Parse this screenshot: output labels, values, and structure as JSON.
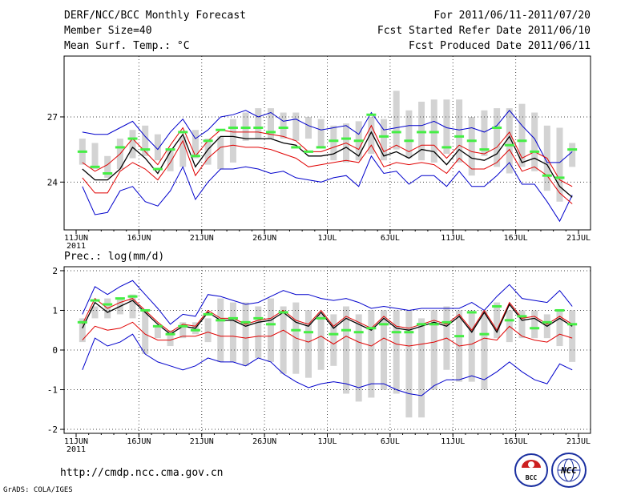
{
  "header": {
    "left": [
      "DERF/NCC/BCC Monthly Forecast",
      "Member Size=40",
      "Mean Surf. Temp.: °C"
    ],
    "right": [
      "For 2011/06/11-2011/07/20",
      "Fcst Started Refer Date 2011/06/10",
      "Fcst Produced Date 2011/06/11"
    ]
  },
  "footer": {
    "url": "http://cmdp.ncc.cma.gov.cn",
    "credit": "GrADS: COLA/IGES",
    "logo_left_text": "BCC",
    "logo_right_text": "NCC"
  },
  "colors": {
    "grey_bar": "#d3d3d3",
    "green": "#44ee44",
    "black_line": "#000000",
    "red_line": "#e00000",
    "blue_line": "#0000cc",
    "grid": "#444444"
  },
  "chart_data": [
    {
      "type": "line",
      "title": "Mean Surf. Temp.: °C",
      "x_ticks": [
        "11JUN",
        "16JUN",
        "21JUN",
        "26JUN",
        "1JUL",
        "6JUL",
        "11JUL",
        "16JUL",
        "21JUL"
      ],
      "x_sublabel": "2011",
      "y_ticks": [
        24,
        27
      ],
      "ylim": [
        21.8,
        29.8
      ],
      "days": 40,
      "bar_low": [
        24.8,
        24.6,
        24.2,
        24.6,
        25.1,
        25.2,
        25.0,
        24.5,
        24.7,
        25.1,
        24.8,
        24.6,
        24.9,
        25.9,
        26.0,
        26.0,
        26.0,
        25.9,
        26.0,
        25.6,
        25.0,
        24.9,
        25.0,
        25.3,
        25.0,
        25.5,
        25.1,
        25.0,
        24.9,
        25.3,
        24.9,
        24.3,
        25.2,
        24.7,
        24.4,
        24.7,
        24.5,
        23.6,
        23.1,
        24.7
      ],
      "bar_high": [
        26.0,
        25.8,
        25.2,
        26.0,
        26.4,
        26.6,
        26.2,
        25.5,
        26.1,
        26.4,
        26.0,
        26.1,
        26.9,
        27.2,
        27.4,
        27.4,
        27.2,
        27.2,
        27.0,
        26.9,
        26.6,
        26.7,
        26.8,
        27.0,
        26.9,
        28.2,
        27.3,
        27.7,
        27.8,
        27.8,
        27.8,
        27.0,
        27.3,
        27.4,
        27.4,
        27.6,
        27.2,
        26.6,
        26.5,
        25.8
      ],
      "green": [
        25.4,
        24.7,
        24.4,
        25.6,
        26.0,
        25.5,
        24.6,
        25.5,
        26.3,
        25.2,
        25.9,
        26.4,
        26.5,
        26.5,
        26.5,
        26.3,
        26.5,
        25.6,
        25.4,
        25.6,
        25.9,
        26.0,
        25.9,
        27.1,
        26.1,
        26.3,
        25.9,
        26.3,
        26.3,
        25.6,
        26.1,
        25.9,
        25.5,
        26.5,
        25.7,
        25.9,
        25.4,
        24.3,
        24.2,
        25.5
      ],
      "mean": [
        24.6,
        24.1,
        24.1,
        24.6,
        25.6,
        25.1,
        24.4,
        25.4,
        26.2,
        24.7,
        25.5,
        26.1,
        26.1,
        26.0,
        26.0,
        26.0,
        25.8,
        25.7,
        25.2,
        25.2,
        25.3,
        25.6,
        25.2,
        26.3,
        25.2,
        25.4,
        25.1,
        25.5,
        25.4,
        24.8,
        25.5,
        25.1,
        25.0,
        25.3,
        26.1,
        24.9,
        25.1,
        24.8,
        23.8,
        23.3
      ],
      "red_upper": [
        24.9,
        24.5,
        24.8,
        25.3,
        26.0,
        25.4,
        24.8,
        25.7,
        26.5,
        25.2,
        25.9,
        26.4,
        26.3,
        26.3,
        26.3,
        26.2,
        26.1,
        25.9,
        25.4,
        25.4,
        25.6,
        25.8,
        25.5,
        26.6,
        25.4,
        25.7,
        25.4,
        25.7,
        25.7,
        25.1,
        25.7,
        25.4,
        25.3,
        25.6,
        26.3,
        25.1,
        25.4,
        25.1,
        24.1,
        23.8
      ],
      "red_lower": [
        24.2,
        23.5,
        23.5,
        24.5,
        24.9,
        24.6,
        24.1,
        24.9,
        25.9,
        24.3,
        25.1,
        25.6,
        25.7,
        25.6,
        25.6,
        25.5,
        25.3,
        25.1,
        24.7,
        24.8,
        24.9,
        25.0,
        24.9,
        25.7,
        24.7,
        24.9,
        24.8,
        24.9,
        24.8,
        24.4,
        25.1,
        24.6,
        24.6,
        24.9,
        25.5,
        24.5,
        24.7,
        24.3,
        23.5,
        23.0
      ],
      "blue_upper": [
        26.3,
        26.2,
        26.2,
        26.5,
        26.8,
        26.1,
        25.5,
        26.3,
        26.9,
        26.0,
        26.4,
        27.0,
        27.1,
        27.3,
        27.0,
        27.2,
        26.8,
        26.9,
        26.6,
        26.4,
        26.5,
        26.6,
        26.2,
        27.2,
        26.4,
        26.5,
        26.6,
        26.6,
        26.8,
        26.5,
        26.4,
        26.5,
        26.3,
        26.6,
        27.3,
        26.6,
        26.0,
        24.9,
        24.9,
        25.4
      ],
      "blue_lower": [
        23.8,
        22.5,
        22.6,
        23.6,
        23.8,
        23.1,
        22.9,
        23.6,
        24.7,
        23.2,
        24.0,
        24.6,
        24.6,
        24.7,
        24.6,
        24.4,
        24.5,
        24.2,
        24.1,
        24.0,
        24.2,
        24.3,
        23.8,
        25.2,
        24.4,
        24.5,
        23.9,
        24.3,
        24.3,
        23.8,
        24.5,
        23.8,
        23.8,
        24.3,
        24.9,
        23.9,
        23.9,
        23.1,
        22.2,
        23.4
      ]
    },
    {
      "type": "line",
      "title": "Prec.: log(mm/d)",
      "x_ticks": [
        "11JUN",
        "16JUN",
        "21JUN",
        "26JUN",
        "1JUL",
        "6JUL",
        "11JUL",
        "16JUL",
        "21JUL"
      ],
      "x_sublabel": "2011",
      "y_ticks": [
        -2,
        -1,
        0,
        1,
        2
      ],
      "ylim": [
        -2.1,
        2.1
      ],
      "days": 40,
      "bar_low": [
        0.2,
        0.8,
        0.8,
        0.9,
        0.8,
        -0.1,
        0.3,
        0.1,
        0.3,
        0.4,
        0.2,
        -0.3,
        -0.3,
        -0.4,
        -0.2,
        -0.3,
        -0.6,
        -0.6,
        -0.7,
        -0.5,
        -0.4,
        -1.1,
        -1.3,
        -1.2,
        -1.0,
        -1.1,
        -1.7,
        -1.7,
        -1.0,
        -0.5,
        -0.8,
        -0.8,
        -1.0,
        0.3,
        0.2,
        0.3,
        0.3,
        0.3,
        0.1,
        -0.3
      ],
      "bar_high": [
        0.8,
        1.1,
        1.3,
        1.3,
        1.4,
        1.0,
        0.6,
        0.5,
        0.7,
        0.7,
        0.8,
        1.3,
        1.2,
        1.2,
        1.1,
        1.3,
        1.1,
        1.2,
        1.0,
        0.9,
        0.9,
        1.1,
        0.9,
        1.0,
        1.0,
        1.0,
        1.0,
        0.8,
        1.0,
        1.1,
        1.0,
        1.0,
        1.0,
        1.2,
        1.0,
        1.0,
        1.0,
        0.9,
        1.0,
        1.0
      ],
      "green": [
        0.7,
        1.25,
        1.15,
        1.3,
        1.35,
        1.0,
        0.6,
        0.4,
        0.6,
        0.5,
        0.9,
        0.75,
        0.8,
        0.7,
        0.8,
        0.65,
        0.95,
        0.5,
        0.45,
        0.8,
        0.4,
        0.5,
        0.45,
        0.55,
        0.65,
        0.45,
        0.45,
        0.65,
        0.65,
        0.7,
        0.35,
        0.95,
        0.4,
        1.1,
        0.75,
        0.85,
        0.55,
        0.7,
        1.0,
        0.65
      ],
      "mean": [
        0.55,
        1.2,
        0.95,
        1.1,
        1.25,
        0.95,
        0.65,
        0.4,
        0.6,
        0.55,
        0.95,
        0.75,
        0.75,
        0.6,
        0.7,
        0.75,
        0.95,
        0.7,
        0.6,
        0.95,
        0.55,
        0.8,
        0.65,
        0.5,
        0.8,
        0.55,
        0.5,
        0.6,
        0.7,
        0.6,
        0.85,
        0.45,
        0.95,
        0.45,
        1.15,
        0.75,
        0.8,
        0.6,
        0.8,
        0.6
      ],
      "red_upper": [
        0.65,
        1.3,
        1.05,
        1.2,
        1.3,
        1.0,
        0.7,
        0.45,
        0.65,
        0.6,
        1.0,
        0.8,
        0.8,
        0.65,
        0.75,
        0.8,
        1.0,
        0.75,
        0.65,
        1.0,
        0.6,
        0.85,
        0.7,
        0.55,
        0.85,
        0.6,
        0.55,
        0.65,
        0.75,
        0.65,
        0.9,
        0.5,
        1.0,
        0.5,
        1.2,
        0.8,
        0.85,
        0.65,
        0.85,
        0.65
      ],
      "red_lower": [
        0.25,
        0.6,
        0.5,
        0.55,
        0.7,
        0.4,
        0.25,
        0.25,
        0.35,
        0.35,
        0.45,
        0.35,
        0.35,
        0.3,
        0.35,
        0.35,
        0.5,
        0.3,
        0.2,
        0.35,
        0.15,
        0.35,
        0.2,
        0.1,
        0.3,
        0.15,
        0.1,
        0.15,
        0.2,
        0.3,
        0.1,
        0.15,
        0.3,
        0.25,
        0.6,
        0.35,
        0.25,
        0.2,
        0.4,
        0.3
      ],
      "blue_upper": [
        0.9,
        1.6,
        1.4,
        1.6,
        1.75,
        1.4,
        1.05,
        0.65,
        0.9,
        0.85,
        1.4,
        1.35,
        1.25,
        1.15,
        1.2,
        1.35,
        1.5,
        1.4,
        1.4,
        1.3,
        1.25,
        1.3,
        1.2,
        1.05,
        1.1,
        1.05,
        1.0,
        1.05,
        1.05,
        1.05,
        1.05,
        1.2,
        1.0,
        1.35,
        1.65,
        1.3,
        1.25,
        1.2,
        1.5,
        1.1
      ],
      "blue_lower": [
        -0.5,
        0.3,
        0.1,
        0.2,
        0.4,
        -0.1,
        -0.3,
        -0.4,
        -0.5,
        -0.4,
        -0.2,
        -0.3,
        -0.3,
        -0.4,
        -0.2,
        -0.3,
        -0.6,
        -0.8,
        -0.95,
        -0.85,
        -0.8,
        -0.85,
        -0.95,
        -0.85,
        -0.85,
        -1.0,
        -1.1,
        -1.15,
        -0.9,
        -0.75,
        -0.75,
        -0.65,
        -0.75,
        -0.55,
        -0.3,
        -0.55,
        -0.75,
        -0.85,
        -0.35,
        -0.5
      ]
    }
  ]
}
